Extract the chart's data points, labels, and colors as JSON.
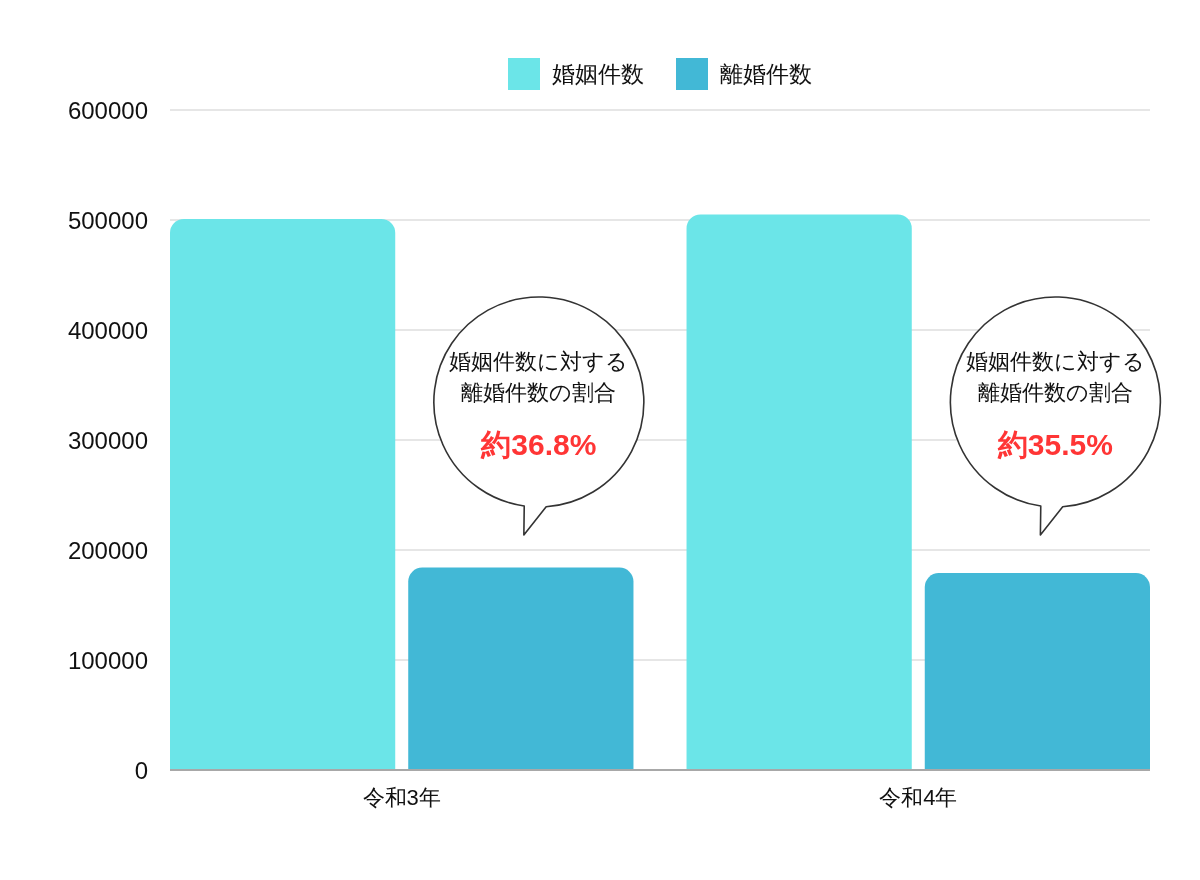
{
  "chart_data": {
    "type": "bar",
    "categories": [
      "令和3年",
      "令和4年"
    ],
    "series": [
      {
        "name": "婚姻件数",
        "color": "#6be5e8",
        "values": [
          501000,
          505000
        ]
      },
      {
        "name": "離婚件数",
        "color": "#42b8d6",
        "values": [
          184000,
          179000
        ]
      }
    ],
    "ylim": [
      0,
      600000
    ],
    "yticks": [
      0,
      100000,
      200000,
      300000,
      400000,
      500000,
      600000
    ],
    "grid": "y",
    "legend": "top",
    "annotations": [
      "婚姻件数に対する離婚件数の割合",
      "約36.8%",
      "婚姻件数に対する離婚件数の割合",
      "約35.5%"
    ]
  }
}
